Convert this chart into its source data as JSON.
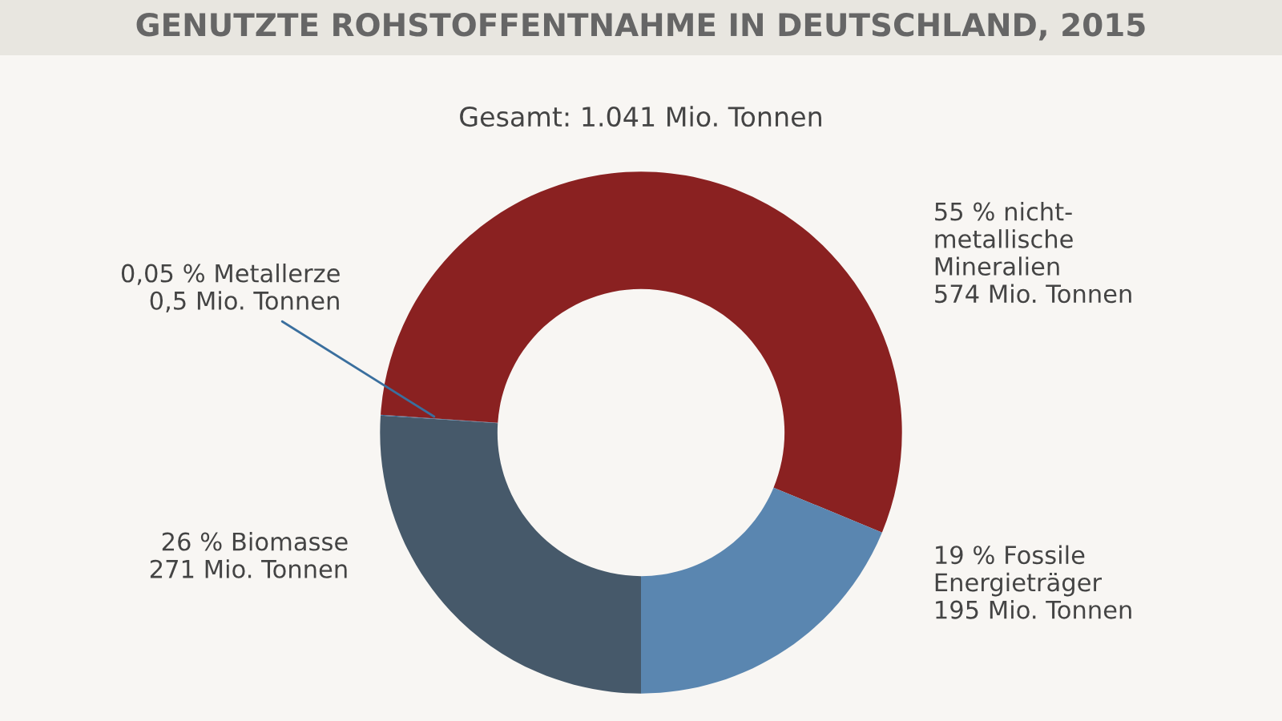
{
  "chart_data": {
    "type": "donut",
    "title": "GENUTZTE ROHSTOFFENTNAHME IN DEUTSCHLAND, 2015",
    "subtitle": "Gesamt: 1.041 Mio. Tonnen",
    "categories": [
      "26 % Biomasse\n271 Mio. Tonnen",
      "0,05 % Metallerze\n0,5 Mio. Tonnen",
      "55 % nicht-\nmetallische\nMineralien\n574 Mio. Tonnen",
      "19 % Fossile\nEnergieträger\n195 Mio. Tonnen"
    ],
    "values": [
      271,
      0.5,
      574,
      195
    ],
    "colors": [
      "#46596a",
      "#3a6f9e",
      "#8a2121",
      "#5a86b0"
    ],
    "legend": false
  }
}
